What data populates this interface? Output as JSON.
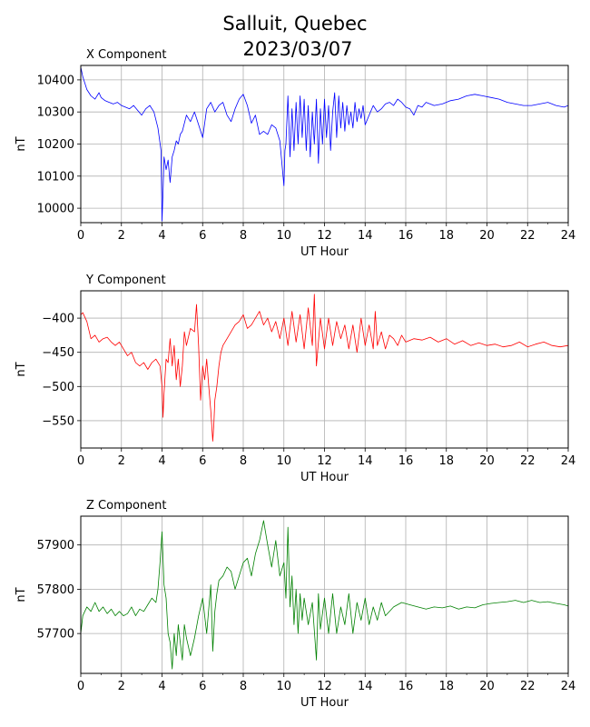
{
  "figure": {
    "title_line1": "Salluit, Quebec",
    "title_line2": "2023/03/07"
  },
  "chart_data": [
    {
      "type": "line",
      "title": "X Component",
      "xlabel": "UT Hour",
      "ylabel": "nT",
      "color": "#0000ff",
      "xlim": [
        0,
        24
      ],
      "ylim": [
        9955,
        10445
      ],
      "xticks": [
        0,
        2,
        4,
        6,
        8,
        10,
        12,
        14,
        16,
        18,
        20,
        22,
        24
      ],
      "yticks": [
        10000,
        10100,
        10200,
        10300,
        10400
      ],
      "grid": true,
      "series": [
        {
          "x": [
            0,
            0.1,
            0.3,
            0.5,
            0.7,
            0.9,
            1.0,
            1.2,
            1.4,
            1.6,
            1.8,
            2.0,
            2.2,
            2.4,
            2.6,
            2.8,
            3.0,
            3.2,
            3.4,
            3.6,
            3.8,
            3.95,
            4.0,
            4.05,
            4.1,
            4.2,
            4.3,
            4.4,
            4.5,
            4.6,
            4.7,
            4.8,
            4.9,
            5.0,
            5.2,
            5.4,
            5.6,
            5.8,
            6.0,
            6.2,
            6.4,
            6.6,
            6.8,
            7.0,
            7.2,
            7.4,
            7.6,
            7.8,
            8.0,
            8.2,
            8.4,
            8.6,
            8.8,
            9.0,
            9.2,
            9.4,
            9.6,
            9.8,
            10.0,
            10.05,
            10.1,
            10.2,
            10.3,
            10.4,
            10.5,
            10.6,
            10.7,
            10.8,
            10.9,
            11.0,
            11.1,
            11.2,
            11.3,
            11.4,
            11.5,
            11.6,
            11.7,
            11.8,
            11.9,
            12.0,
            12.1,
            12.2,
            12.3,
            12.4,
            12.5,
            12.6,
            12.7,
            12.8,
            12.9,
            13.0,
            13.1,
            13.2,
            13.3,
            13.4,
            13.5,
            13.6,
            13.7,
            13.8,
            13.9,
            14.0,
            14.2,
            14.4,
            14.6,
            14.8,
            15.0,
            15.2,
            15.4,
            15.6,
            15.8,
            16.0,
            16.2,
            16.4,
            16.6,
            16.8,
            17.0,
            17.4,
            17.8,
            18.2,
            18.6,
            19.0,
            19.4,
            19.8,
            20.2,
            20.6,
            21.0,
            21.4,
            21.8,
            22.2,
            22.6,
            23.0,
            23.4,
            23.8,
            24.0
          ],
          "y": [
            10440,
            10410,
            10370,
            10350,
            10340,
            10360,
            10345,
            10335,
            10330,
            10325,
            10330,
            10320,
            10315,
            10310,
            10320,
            10305,
            10290,
            10310,
            10320,
            10300,
            10250,
            10180,
            9960,
            10050,
            10160,
            10120,
            10150,
            10080,
            10160,
            10180,
            10210,
            10200,
            10230,
            10240,
            10290,
            10270,
            10300,
            10260,
            10220,
            10310,
            10330,
            10300,
            10320,
            10330,
            10290,
            10270,
            10310,
            10340,
            10355,
            10320,
            10265,
            10290,
            10230,
            10240,
            10230,
            10260,
            10250,
            10210,
            10070,
            10180,
            10200,
            10350,
            10160,
            10310,
            10180,
            10330,
            10200,
            10350,
            10220,
            10340,
            10180,
            10320,
            10160,
            10300,
            10200,
            10340,
            10140,
            10310,
            10200,
            10340,
            10220,
            10320,
            10180,
            10300,
            10360,
            10220,
            10350,
            10250,
            10330,
            10240,
            10320,
            10260,
            10300,
            10250,
            10330,
            10270,
            10310,
            10280,
            10320,
            10260,
            10290,
            10320,
            10300,
            10310,
            10325,
            10330,
            10320,
            10340,
            10330,
            10315,
            10310,
            10290,
            10320,
            10315,
            10330,
            10320,
            10325,
            10335,
            10340,
            10350,
            10355,
            10350,
            10345,
            10340,
            10330,
            10325,
            10320,
            10320,
            10325,
            10330,
            10320,
            10315,
            10320
          ]
        }
      ]
    },
    {
      "type": "line",
      "title": "Y Component",
      "xlabel": "UT Hour",
      "ylabel": "nT",
      "color": "#ff0000",
      "xlim": [
        0,
        24
      ],
      "ylim": [
        -590,
        -360
      ],
      "xticks": [
        0,
        2,
        4,
        6,
        8,
        10,
        12,
        14,
        16,
        18,
        20,
        22,
        24
      ],
      "yticks": [
        -550,
        -500,
        -450,
        -400
      ],
      "grid": true,
      "series": [
        {
          "x": [
            0,
            0.1,
            0.3,
            0.5,
            0.7,
            0.9,
            1.1,
            1.3,
            1.5,
            1.7,
            1.9,
            2.1,
            2.3,
            2.5,
            2.7,
            2.9,
            3.1,
            3.3,
            3.5,
            3.7,
            3.9,
            4.0,
            4.05,
            4.1,
            4.2,
            4.3,
            4.4,
            4.5,
            4.6,
            4.7,
            4.8,
            4.9,
            5.0,
            5.1,
            5.2,
            5.4,
            5.6,
            5.7,
            5.8,
            5.9,
            6.0,
            6.1,
            6.2,
            6.3,
            6.4,
            6.5,
            6.55,
            6.6,
            6.7,
            6.8,
            6.9,
            7.0,
            7.2,
            7.4,
            7.6,
            7.8,
            8.0,
            8.2,
            8.4,
            8.6,
            8.8,
            9.0,
            9.2,
            9.4,
            9.6,
            9.8,
            10.0,
            10.2,
            10.4,
            10.6,
            10.8,
            11.0,
            11.2,
            11.4,
            11.5,
            11.6,
            11.8,
            12.0,
            12.2,
            12.4,
            12.6,
            12.8,
            13.0,
            13.2,
            13.4,
            13.6,
            13.8,
            14.0,
            14.2,
            14.4,
            14.5,
            14.6,
            14.8,
            15.0,
            15.2,
            15.4,
            15.6,
            15.8,
            16.0,
            16.4,
            16.8,
            17.2,
            17.6,
            18.0,
            18.4,
            18.8,
            19.2,
            19.6,
            20.0,
            20.4,
            20.8,
            21.2,
            21.6,
            22.0,
            22.4,
            22.8,
            23.2,
            23.6,
            24.0
          ],
          "y": [
            -395,
            -392,
            -405,
            -430,
            -425,
            -435,
            -430,
            -428,
            -435,
            -440,
            -435,
            -445,
            -455,
            -450,
            -465,
            -470,
            -465,
            -475,
            -465,
            -460,
            -470,
            -500,
            -545,
            -510,
            -460,
            -465,
            -430,
            -470,
            -440,
            -490,
            -460,
            -500,
            -470,
            -420,
            -440,
            -415,
            -420,
            -380,
            -440,
            -520,
            -470,
            -490,
            -460,
            -500,
            -535,
            -580,
            -555,
            -520,
            -500,
            -470,
            -450,
            -440,
            -430,
            -420,
            -410,
            -405,
            -395,
            -415,
            -410,
            -400,
            -390,
            -410,
            -400,
            -420,
            -405,
            -430,
            -400,
            -440,
            -390,
            -435,
            -395,
            -445,
            -385,
            -440,
            -365,
            -470,
            -400,
            -445,
            -400,
            -440,
            -405,
            -430,
            -410,
            -445,
            -410,
            -450,
            -400,
            -440,
            -410,
            -445,
            -390,
            -440,
            -420,
            -445,
            -425,
            -430,
            -440,
            -425,
            -435,
            -430,
            -432,
            -428,
            -435,
            -430,
            -438,
            -433,
            -440,
            -436,
            -440,
            -438,
            -442,
            -440,
            -435,
            -442,
            -438,
            -435,
            -440,
            -442,
            -440
          ]
        }
      ]
    },
    {
      "type": "line",
      "title": "Z Component",
      "xlabel": "UT Hour",
      "ylabel": "nT",
      "color": "#008000",
      "xlim": [
        0,
        24
      ],
      "ylim": [
        57610,
        57965
      ],
      "xticks": [
        0,
        2,
        4,
        6,
        8,
        10,
        12,
        14,
        16,
        18,
        20,
        22,
        24
      ],
      "yticks": [
        57700,
        57800,
        57900
      ],
      "grid": true,
      "series": [
        {
          "x": [
            0,
            0.1,
            0.3,
            0.5,
            0.7,
            0.9,
            1.1,
            1.3,
            1.5,
            1.7,
            1.9,
            2.1,
            2.3,
            2.5,
            2.7,
            2.9,
            3.1,
            3.3,
            3.5,
            3.7,
            3.8,
            3.9,
            4.0,
            4.1,
            4.2,
            4.3,
            4.4,
            4.5,
            4.6,
            4.7,
            4.8,
            4.9,
            5.0,
            5.1,
            5.2,
            5.4,
            5.6,
            5.8,
            6.0,
            6.2,
            6.4,
            6.5,
            6.6,
            6.7,
            6.8,
            7.0,
            7.2,
            7.4,
            7.6,
            7.8,
            8.0,
            8.2,
            8.4,
            8.6,
            8.8,
            9.0,
            9.2,
            9.4,
            9.6,
            9.8,
            10.0,
            10.1,
            10.2,
            10.3,
            10.4,
            10.5,
            10.6,
            10.7,
            10.8,
            10.9,
            11.0,
            11.2,
            11.4,
            11.6,
            11.7,
            11.8,
            12.0,
            12.2,
            12.4,
            12.6,
            12.8,
            13.0,
            13.2,
            13.4,
            13.6,
            13.8,
            14.0,
            14.2,
            14.4,
            14.6,
            14.8,
            15.0,
            15.4,
            15.8,
            16.2,
            16.6,
            17.0,
            17.4,
            17.8,
            18.2,
            18.6,
            19.0,
            19.4,
            19.8,
            20.2,
            20.6,
            21.0,
            21.4,
            21.8,
            22.2,
            22.6,
            23.0,
            23.4,
            23.8,
            24.0
          ],
          "y": [
            57700,
            57740,
            57760,
            57750,
            57770,
            57750,
            57760,
            57745,
            57755,
            57740,
            57750,
            57740,
            57745,
            57760,
            57740,
            57755,
            57750,
            57765,
            57780,
            57770,
            57800,
            57860,
            57930,
            57810,
            57780,
            57700,
            57680,
            57620,
            57700,
            57650,
            57720,
            57680,
            57640,
            57720,
            57690,
            57650,
            57690,
            57740,
            57780,
            57700,
            57810,
            57660,
            57750,
            57790,
            57820,
            57830,
            57850,
            57840,
            57800,
            57830,
            57860,
            57870,
            57830,
            57880,
            57910,
            57955,
            57900,
            57850,
            57910,
            57830,
            57860,
            57780,
            57940,
            57760,
            57830,
            57720,
            57800,
            57700,
            57790,
            57730,
            57780,
            57720,
            57770,
            57640,
            57790,
            57710,
            57780,
            57700,
            57790,
            57700,
            57760,
            57720,
            57790,
            57700,
            57770,
            57730,
            57780,
            57720,
            57760,
            57730,
            57770,
            57740,
            57760,
            57770,
            57765,
            57760,
            57755,
            57760,
            57758,
            57762,
            57755,
            57760,
            57758,
            57765,
            57768,
            57770,
            57772,
            57775,
            57770,
            57775,
            57770,
            57772,
            57768,
            57765,
            57762
          ]
        }
      ]
    }
  ]
}
